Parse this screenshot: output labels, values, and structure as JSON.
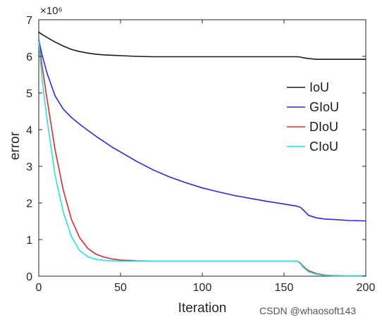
{
  "chart_data": {
    "type": "line",
    "title": "",
    "xlabel": "Iteration",
    "ylabel": "error",
    "y_multiplier": "×10⁶",
    "xlim": [
      0,
      200
    ],
    "ylim": [
      0,
      7
    ],
    "x_ticks": [
      0,
      50,
      100,
      150,
      200
    ],
    "y_ticks": [
      0,
      1,
      2,
      3,
      4,
      5,
      6,
      7
    ],
    "grid": false,
    "legend_position": "right",
    "x": [
      0,
      2,
      5,
      10,
      15,
      20,
      25,
      30,
      35,
      40,
      45,
      50,
      60,
      70,
      80,
      90,
      100,
      110,
      120,
      130,
      140,
      150,
      158,
      160,
      162,
      165,
      170,
      175,
      180,
      190,
      200
    ],
    "series": [
      {
        "name": "IoU",
        "color": "#1a1a1a",
        "values": [
          6.66,
          6.6,
          6.52,
          6.39,
          6.28,
          6.19,
          6.13,
          6.09,
          6.06,
          6.04,
          6.03,
          6.02,
          6.0,
          5.99,
          5.99,
          5.99,
          5.99,
          5.99,
          5.99,
          5.99,
          5.99,
          5.99,
          5.99,
          5.98,
          5.96,
          5.94,
          5.92,
          5.92,
          5.92,
          5.92,
          5.92
        ]
      },
      {
        "name": "GIoU",
        "color": "#2929e8",
        "values": [
          6.45,
          6.05,
          5.55,
          4.92,
          4.56,
          4.33,
          4.15,
          3.98,
          3.82,
          3.67,
          3.52,
          3.39,
          3.13,
          2.9,
          2.71,
          2.55,
          2.41,
          2.3,
          2.2,
          2.12,
          2.04,
          1.97,
          1.91,
          1.88,
          1.8,
          1.66,
          1.59,
          1.56,
          1.55,
          1.52,
          1.51
        ]
      },
      {
        "name": "DIoU",
        "color": "#e8262a",
        "values": [
          6.42,
          5.75,
          4.85,
          3.45,
          2.35,
          1.55,
          1.05,
          0.76,
          0.6,
          0.52,
          0.47,
          0.44,
          0.42,
          0.41,
          0.41,
          0.41,
          0.41,
          0.41,
          0.41,
          0.41,
          0.41,
          0.41,
          0.41,
          0.36,
          0.26,
          0.15,
          0.07,
          0.03,
          0.02,
          0.01,
          0.01
        ]
      },
      {
        "name": "CIoU",
        "color": "#1ee6e6",
        "values": [
          6.4,
          5.4,
          4.3,
          2.75,
          1.75,
          1.08,
          0.7,
          0.53,
          0.46,
          0.43,
          0.42,
          0.41,
          0.41,
          0.41,
          0.41,
          0.41,
          0.41,
          0.41,
          0.41,
          0.41,
          0.41,
          0.41,
          0.41,
          0.34,
          0.23,
          0.12,
          0.05,
          0.02,
          0.01,
          0.01,
          0.01
        ]
      }
    ]
  },
  "watermark": "CSDN @whaosoft143"
}
